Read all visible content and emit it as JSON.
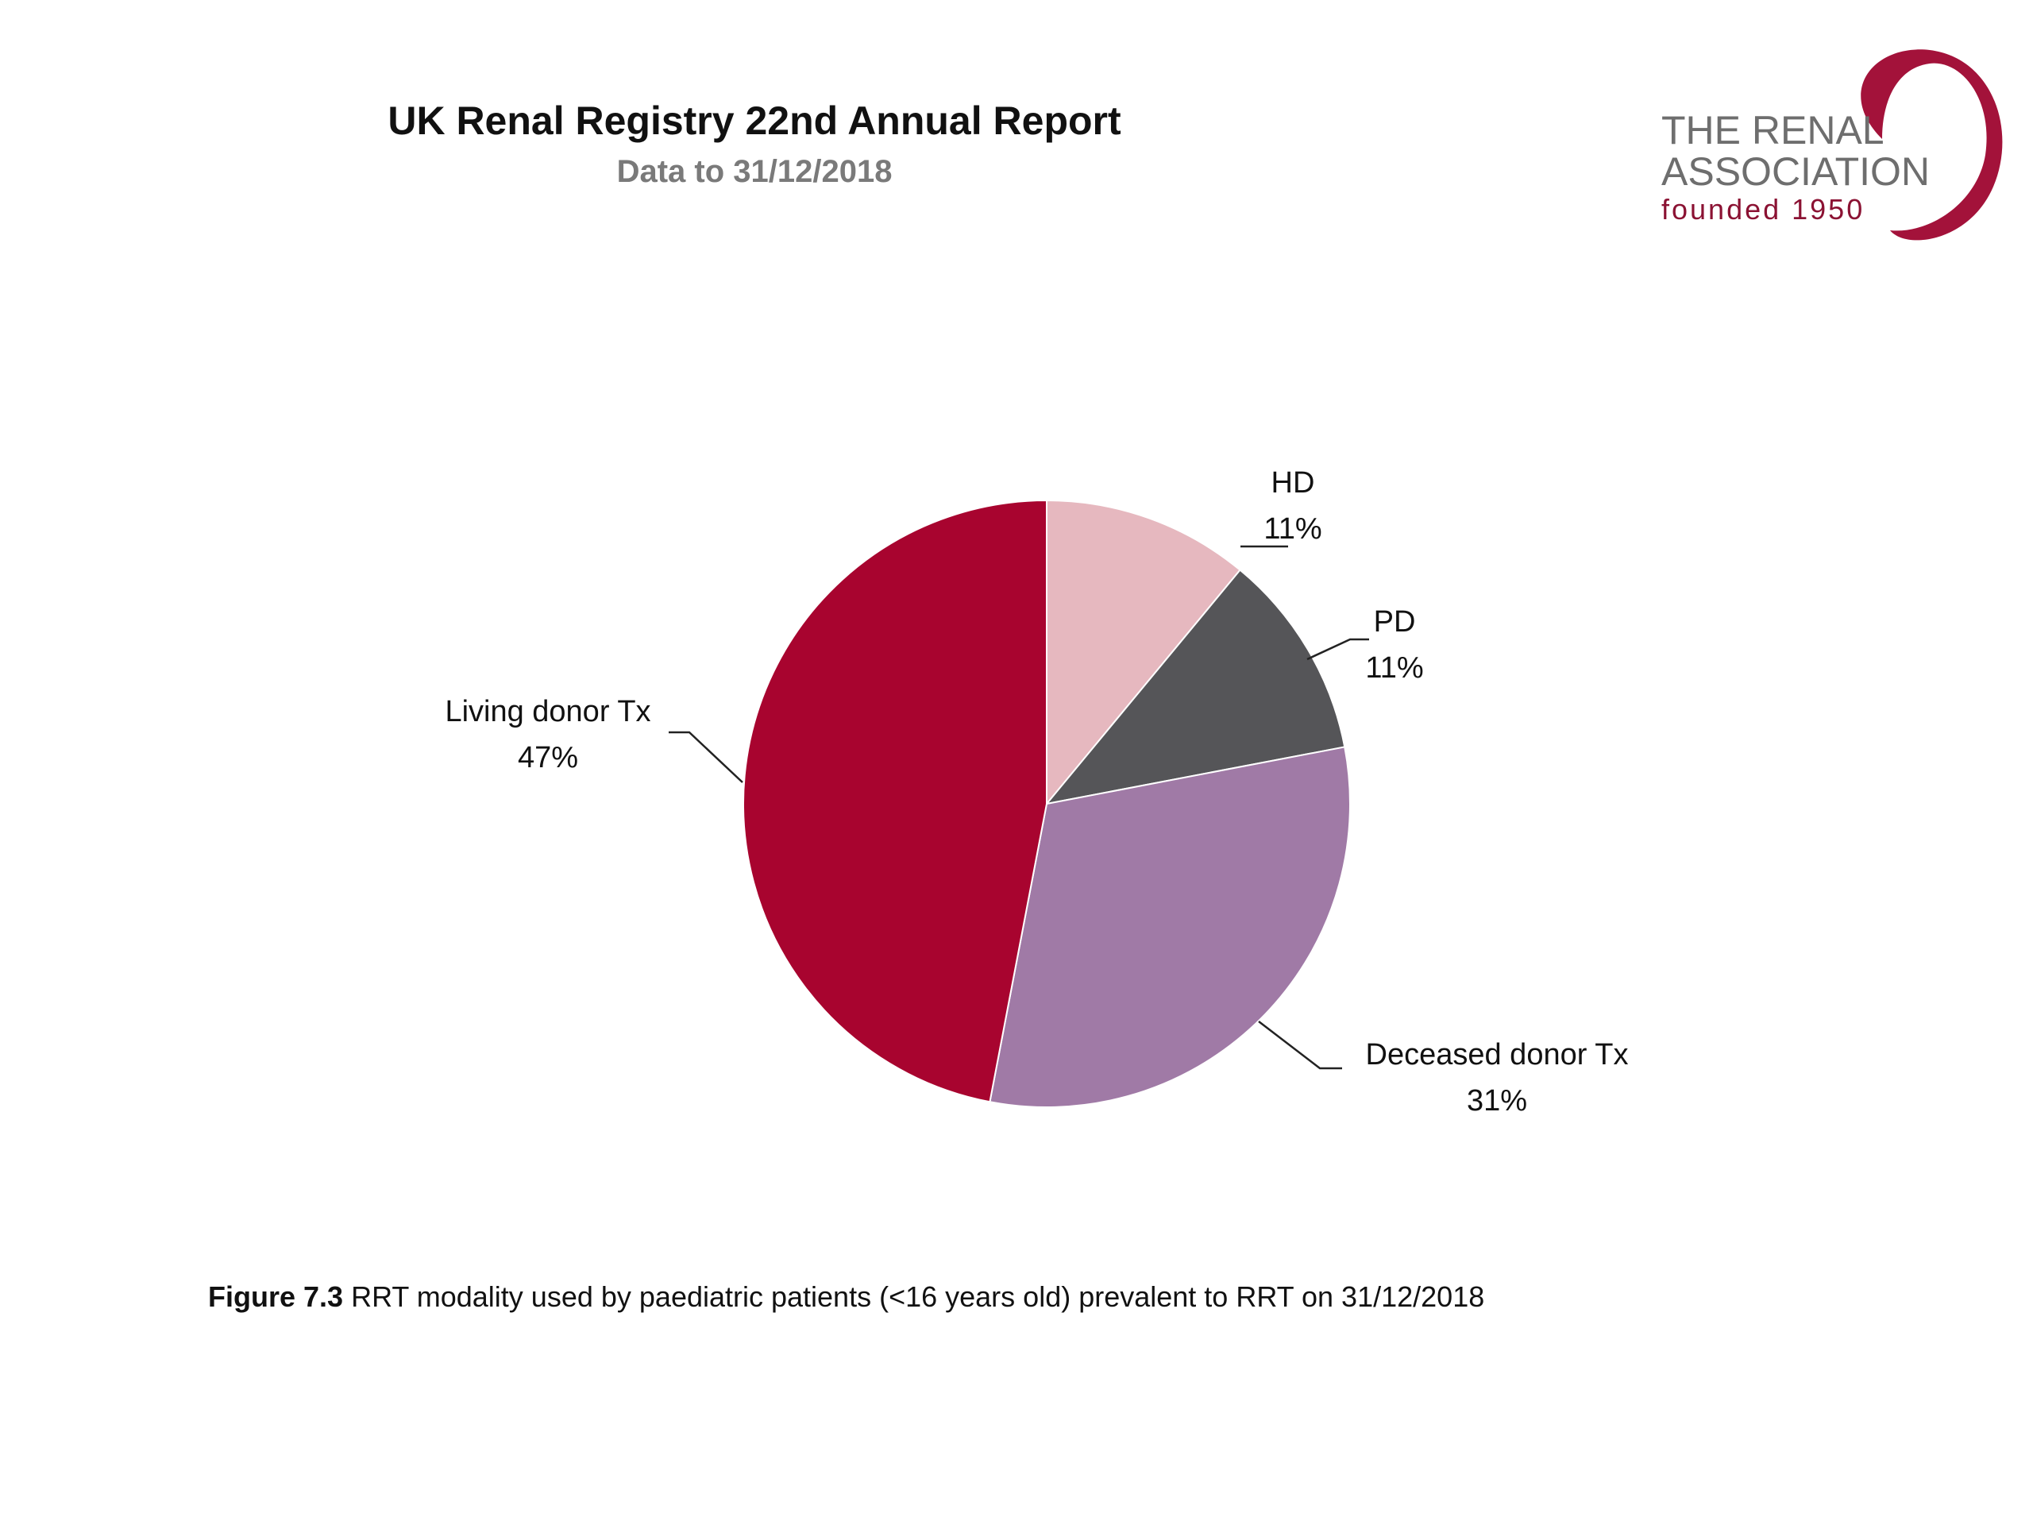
{
  "header": {
    "title": "UK Renal Registry 22nd Annual Report",
    "subtitle": "Data to 31/12/2018"
  },
  "logo": {
    "line1": "THE RENAL",
    "line2": "ASSOCIATION",
    "line3": "founded 1950",
    "swoosh_color": "#a3123a"
  },
  "chart_data": {
    "type": "pie",
    "title": "",
    "start": "12 o'clock, clockwise",
    "slices": [
      {
        "label": "HD",
        "value": 11,
        "display": "11%",
        "color": "#e6b8bf"
      },
      {
        "label": "PD",
        "value": 11,
        "display": "11%",
        "color": "#555558"
      },
      {
        "label": "Deceased donor Tx",
        "value": 31,
        "display": "31%",
        "color": "#a07aa6"
      },
      {
        "label": "Living donor Tx",
        "value": 47,
        "display": "47%",
        "color": "#a8042f"
      }
    ],
    "legend": "none (data labels with leader lines)"
  },
  "caption": {
    "figure_label": "Figure 7.3",
    "text": " RRT modality used by paediatric patients (<16 years old) prevalent to RRT on 31/12/2018"
  }
}
